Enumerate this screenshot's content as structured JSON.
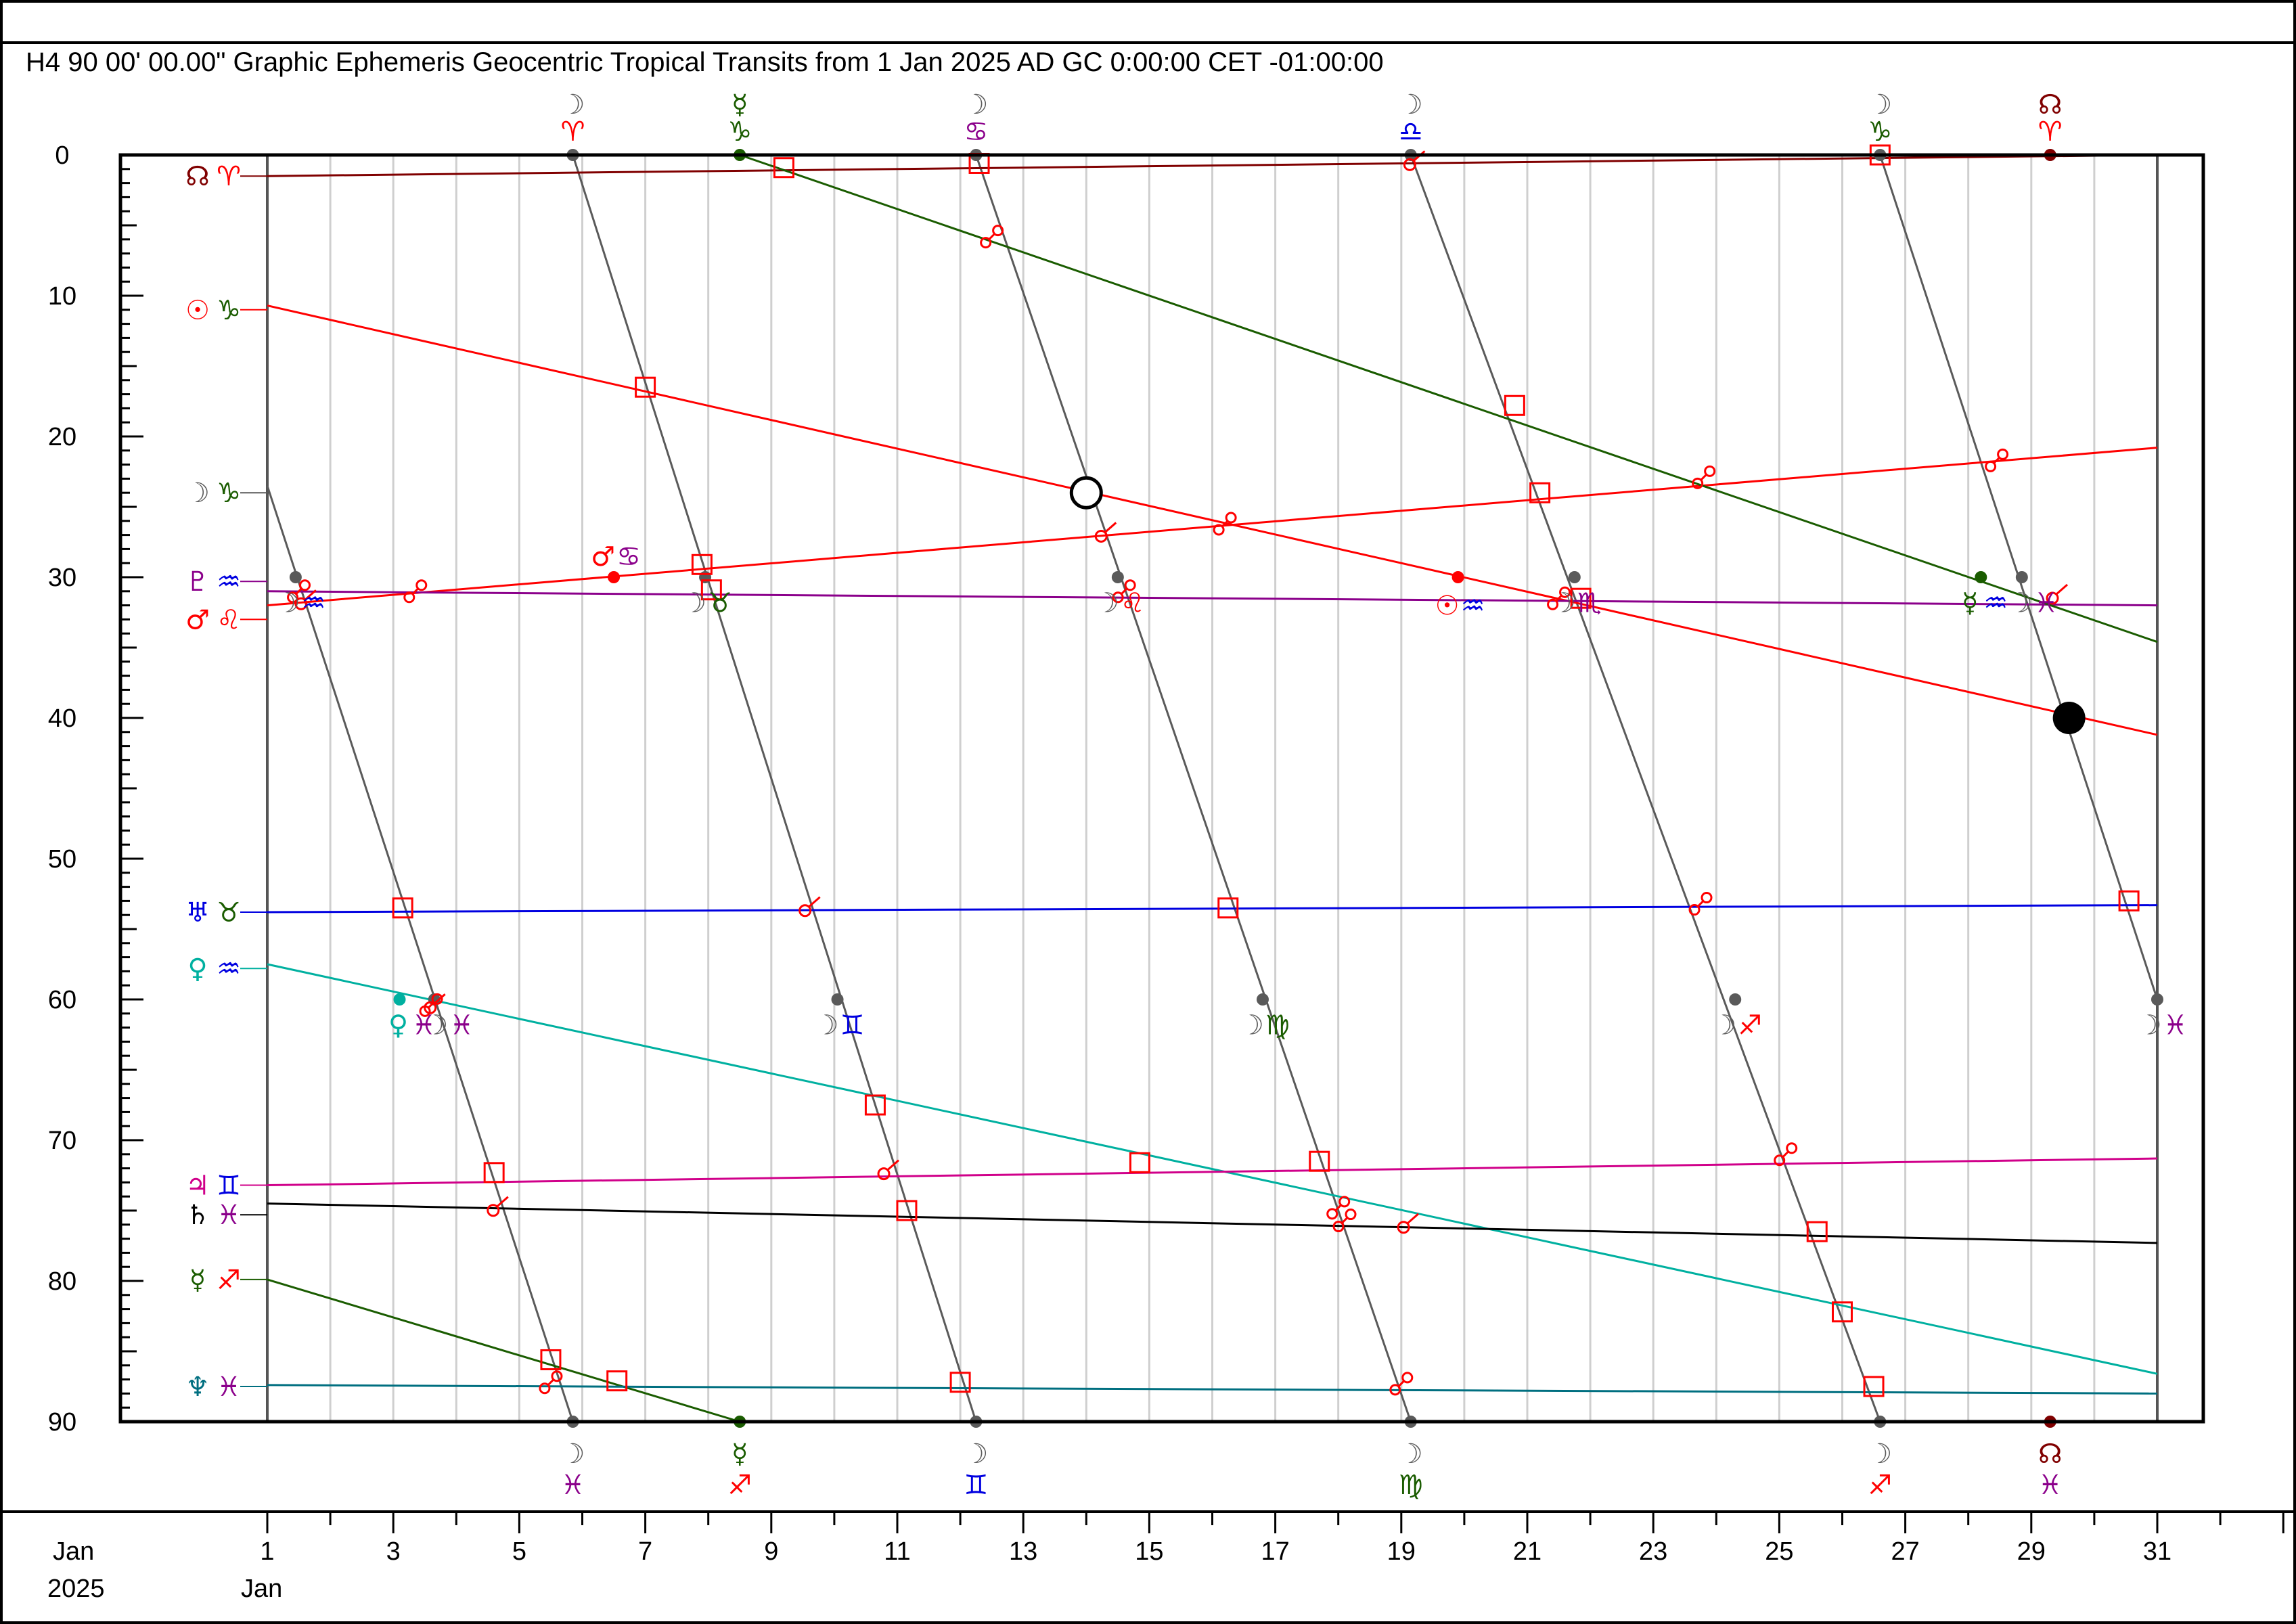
{
  "header": {
    "title": "H4   90 00' 00.00\" Graphic Ephemeris Geocentric Tropical Transits from 1 Jan 2025 AD GC 0:00:00 CET -01:00:00"
  },
  "footer": {
    "month_label": "Jan",
    "year_label": "2025",
    "start_month_label": "Jan"
  },
  "colors": {
    "moon": "#5a5a5a",
    "sun": "#ff0000",
    "mars": "#ff0000",
    "mercury": "#1a5c00",
    "venus": "#00b0a0",
    "jupiter": "#d0008a",
    "saturn": "#000000",
    "uranus": "#0000e0",
    "neptune": "#006f80",
    "pluto": "#8b008b",
    "node": "#800000",
    "aspect": "#ff0000"
  },
  "chart_data": {
    "type": "line",
    "title": "Graphic Ephemeris Geocentric Tropical Transits from 1 Jan 2025 AD GC 0:00:00 CET -01:00:00",
    "harmonic": "H4",
    "modulus_label": "90 00' 00.00\"",
    "x_unit": "day of January 2025",
    "x_range": [
      1,
      31
    ],
    "y_unit": "degrees within 90° modulus",
    "ylim": [
      0,
      90
    ],
    "y_ticks": [
      0,
      10,
      20,
      30,
      40,
      50,
      60,
      70,
      80,
      90
    ],
    "x_tick_labels": [
      1,
      3,
      5,
      7,
      9,
      11,
      13,
      15,
      17,
      19,
      21,
      23,
      25,
      27,
      29,
      31
    ],
    "series": [
      {
        "name": "Node",
        "glyph": "☊",
        "sign": "♈",
        "color_key": "node",
        "start": [
          1,
          1.5
        ],
        "end": [
          31,
          0.0
        ]
      },
      {
        "name": "Sun",
        "glyph": "☉",
        "sign": "♑",
        "color_key": "sun",
        "start": [
          1,
          10.7
        ],
        "end": [
          31,
          41.2
        ]
      },
      {
        "name": "Mars",
        "glyph": "♂",
        "sign": "♌",
        "color_key": "mars",
        "start": [
          1,
          32.0
        ],
        "end": [
          31,
          20.8
        ]
      },
      {
        "name": "Pluto",
        "glyph": "♇",
        "sign": "♒",
        "color_key": "pluto",
        "start": [
          1,
          31.0
        ],
        "end": [
          31,
          32.0
        ]
      },
      {
        "name": "Mercury",
        "glyph": "☿",
        "sign": "♐",
        "color_key": "mercury",
        "start": [
          1,
          79.9
        ],
        "end": [
          8.5,
          90.0
        ]
      },
      {
        "name": "Mercury",
        "glyph": "☿",
        "sign": "♑",
        "color_key": "mercury",
        "start": [
          8.5,
          0.0
        ],
        "end": [
          31,
          34.6
        ]
      },
      {
        "name": "Uranus",
        "glyph": "♅",
        "sign": "♉",
        "color_key": "uranus",
        "start": [
          1,
          53.8
        ],
        "end": [
          31,
          53.3
        ]
      },
      {
        "name": "Venus",
        "glyph": "♀",
        "sign": "♒",
        "color_key": "venus",
        "start": [
          1,
          57.5
        ],
        "end": [
          31,
          86.6
        ]
      },
      {
        "name": "Jupiter",
        "glyph": "♃",
        "sign": "♊",
        "color_key": "jupiter",
        "start": [
          1,
          73.2
        ],
        "end": [
          31,
          71.3
        ]
      },
      {
        "name": "Saturn",
        "glyph": "♄",
        "sign": "♓",
        "color_key": "saturn",
        "start": [
          1,
          74.5
        ],
        "end": [
          31,
          77.3
        ]
      },
      {
        "name": "Neptune",
        "glyph": "♆",
        "sign": "♓",
        "color_key": "neptune",
        "start": [
          1,
          87.4
        ],
        "end": [
          31,
          88.0
        ]
      }
    ],
    "moon_segments": [
      {
        "start": [
          1,
          23.5
        ],
        "end": [
          5.85,
          90
        ]
      },
      {
        "start": [
          5.85,
          0
        ],
        "end": [
          12.25,
          90
        ]
      },
      {
        "start": [
          12.25,
          0
        ],
        "end": [
          19.15,
          90
        ]
      },
      {
        "start": [
          19.15,
          0
        ],
        "end": [
          26.6,
          90
        ]
      },
      {
        "start": [
          26.6,
          0
        ],
        "end": [
          31,
          60
        ]
      }
    ],
    "row_labels": [
      {
        "y": 1.5,
        "glyph": "☊",
        "sign": "♈",
        "glyph_color": "node",
        "sign_color": "sun"
      },
      {
        "y": 11,
        "glyph": "☉",
        "sign": "♑",
        "glyph_color": "sun",
        "sign_color": "mercury"
      },
      {
        "y": 24,
        "glyph": "☽",
        "sign": "♑",
        "glyph_color": "moon",
        "sign_color": "mercury"
      },
      {
        "y": 30.3,
        "glyph": "♇",
        "sign": "♒",
        "glyph_color": "pluto",
        "sign_color": "uranus"
      },
      {
        "y": 33,
        "glyph": "♂",
        "sign": "♌",
        "glyph_color": "mars",
        "sign_color": "mars"
      },
      {
        "y": 53.8,
        "glyph": "♅",
        "sign": "♉",
        "glyph_color": "uranus",
        "sign_color": "mercury"
      },
      {
        "y": 57.8,
        "glyph": "♀",
        "sign": "♒",
        "glyph_color": "venus",
        "sign_color": "uranus"
      },
      {
        "y": 73.2,
        "glyph": "♃",
        "sign": "♊",
        "glyph_color": "jupiter",
        "sign_color": "uranus"
      },
      {
        "y": 75.3,
        "glyph": "♄",
        "sign": "♓",
        "glyph_color": "saturn",
        "sign_color": "pluto"
      },
      {
        "y": 79.9,
        "glyph": "☿",
        "sign": "♐",
        "glyph_color": "mercury",
        "sign_color": "mars"
      },
      {
        "y": 87.5,
        "glyph": "♆",
        "sign": "♓",
        "glyph_color": "neptune",
        "sign_color": "pluto"
      }
    ],
    "top_ingress_labels": [
      {
        "x": 5.85,
        "glyph": "☽",
        "sign": "♈",
        "glyph_color": "moon",
        "sign_color": "sun"
      },
      {
        "x": 8.5,
        "glyph": "☿",
        "sign": "♑",
        "glyph_color": "mercury",
        "sign_color": "mercury"
      },
      {
        "x": 12.25,
        "glyph": "☽",
        "sign": "♋",
        "glyph_color": "moon",
        "sign_color": "pluto"
      },
      {
        "x": 19.15,
        "glyph": "☽",
        "sign": "♎",
        "glyph_color": "moon",
        "sign_color": "uranus"
      },
      {
        "x": 26.6,
        "glyph": "☽",
        "sign": "♑",
        "glyph_color": "moon",
        "sign_color": "mercury"
      },
      {
        "x": 29.3,
        "glyph": "☊",
        "sign": "♈",
        "glyph_color": "node",
        "sign_color": "sun"
      }
    ],
    "bottom_ingress_labels": [
      {
        "x": 5.85,
        "glyph": "☽",
        "sign": "♓",
        "glyph_color": "moon",
        "sign_color": "pluto"
      },
      {
        "x": 8.5,
        "glyph": "☿",
        "sign": "♐",
        "glyph_color": "mercury",
        "sign_color": "mars"
      },
      {
        "x": 12.25,
        "glyph": "☽",
        "sign": "♊",
        "glyph_color": "moon",
        "sign_color": "uranus"
      },
      {
        "x": 19.15,
        "glyph": "☽",
        "sign": "♍",
        "glyph_color": "moon",
        "sign_color": "mercury"
      },
      {
        "x": 26.6,
        "glyph": "☽",
        "sign": "♐",
        "glyph_color": "moon",
        "sign_color": "mars"
      },
      {
        "x": 29.3,
        "glyph": "☊",
        "sign": "♓",
        "glyph_color": "node",
        "sign_color": "pluto"
      }
    ],
    "midchart_ingress_labels": [
      {
        "x": 1.5,
        "y": 31.8,
        "glyph": "☽",
        "sign": "♒",
        "glyph_color": "moon",
        "sign_color": "uranus"
      },
      {
        "x": 7.95,
        "y": 31.8,
        "glyph": "☽",
        "sign": "♉",
        "glyph_color": "moon",
        "sign_color": "mercury"
      },
      {
        "x": 14.5,
        "y": 31.8,
        "glyph": "☽",
        "sign": "♌",
        "glyph_color": "moon",
        "sign_color": "mars"
      },
      {
        "x": 19.9,
        "y": 32.0,
        "glyph": "☉",
        "sign": "♒",
        "glyph_color": "sun",
        "sign_color": "uranus"
      },
      {
        "x": 21.75,
        "y": 31.8,
        "glyph": "☽",
        "sign": "♏",
        "glyph_color": "moon",
        "sign_color": "pluto"
      },
      {
        "x": 28.2,
        "y": 31.8,
        "glyph": "☿",
        "sign": "♒",
        "glyph_color": "mercury",
        "sign_color": "uranus"
      },
      {
        "x": 29.0,
        "y": 31.8,
        "glyph": "☽",
        "sign": "♓",
        "glyph_color": "moon",
        "sign_color": "pluto"
      },
      {
        "x": 6.5,
        "y": 28.5,
        "glyph": "♂",
        "sign": "♋",
        "glyph_color": "mars",
        "sign_color": "pluto"
      },
      {
        "x": 3.25,
        "y": 61.8,
        "glyph": "♀",
        "sign": "♓",
        "glyph_color": "venus",
        "sign_color": "pluto"
      },
      {
        "x": 3.85,
        "y": 61.8,
        "glyph": "☽",
        "sign": "♓",
        "glyph_color": "moon",
        "sign_color": "pluto"
      },
      {
        "x": 10.05,
        "y": 61.8,
        "glyph": "☽",
        "sign": "♊",
        "glyph_color": "moon",
        "sign_color": "uranus"
      },
      {
        "x": 16.8,
        "y": 61.8,
        "glyph": "☽",
        "sign": "♍",
        "glyph_color": "moon",
        "sign_color": "mercury"
      },
      {
        "x": 24.3,
        "y": 61.8,
        "glyph": "☽",
        "sign": "♐",
        "glyph_color": "moon",
        "sign_color": "mars"
      },
      {
        "x": 31.05,
        "y": 61.8,
        "glyph": "☽",
        "sign": "♓",
        "glyph_color": "moon",
        "sign_color": "pluto"
      }
    ],
    "ingress_dots": [
      {
        "x": 1.45,
        "y": 30,
        "color_key": "moon"
      },
      {
        "x": 7.95,
        "y": 30,
        "color_key": "moon"
      },
      {
        "x": 14.5,
        "y": 30,
        "color_key": "moon"
      },
      {
        "x": 21.75,
        "y": 30,
        "color_key": "moon"
      },
      {
        "x": 28.85,
        "y": 30,
        "color_key": "moon"
      },
      {
        "x": 3.65,
        "y": 60,
        "color_key": "moon"
      },
      {
        "x": 10.05,
        "y": 60,
        "color_key": "moon"
      },
      {
        "x": 16.8,
        "y": 60,
        "color_key": "moon"
      },
      {
        "x": 24.3,
        "y": 60,
        "color_key": "moon"
      },
      {
        "x": 31,
        "y": 60,
        "color_key": "moon"
      },
      {
        "x": 5.85,
        "y": 0,
        "color_key": "moon"
      },
      {
        "x": 12.25,
        "y": 0,
        "color_key": "moon"
      },
      {
        "x": 19.15,
        "y": 0,
        "color_key": "moon"
      },
      {
        "x": 26.6,
        "y": 0,
        "color_key": "moon"
      },
      {
        "x": 5.85,
        "y": 90,
        "color_key": "moon"
      },
      {
        "x": 12.25,
        "y": 90,
        "color_key": "moon"
      },
      {
        "x": 19.15,
        "y": 90,
        "color_key": "moon"
      },
      {
        "x": 26.6,
        "y": 90,
        "color_key": "moon"
      },
      {
        "x": 8.5,
        "y": 0,
        "color_key": "mercury"
      },
      {
        "x": 8.5,
        "y": 90,
        "color_key": "mercury"
      },
      {
        "x": 28.2,
        "y": 30,
        "color_key": "mercury"
      },
      {
        "x": 29.3,
        "y": 0,
        "color_key": "node"
      },
      {
        "x": 29.3,
        "y": 90,
        "color_key": "node"
      },
      {
        "x": 6.5,
        "y": 30,
        "color_key": "mars"
      },
      {
        "x": 19.9,
        "y": 30,
        "color_key": "sun"
      },
      {
        "x": 3.1,
        "y": 60,
        "color_key": "venus"
      }
    ],
    "square_markers": [
      {
        "x": 9.2,
        "y": 0.9
      },
      {
        "x": 12.3,
        "y": 0.6
      },
      {
        "x": 26.6,
        "y": 0.0
      },
      {
        "x": 7.0,
        "y": 16.5
      },
      {
        "x": 20.8,
        "y": 17.8
      },
      {
        "x": 21.2,
        "y": 24.0
      },
      {
        "x": 7.9,
        "y": 29.1
      },
      {
        "x": 8.05,
        "y": 30.9
      },
      {
        "x": 21.85,
        "y": 31.5
      },
      {
        "x": 3.15,
        "y": 53.5
      },
      {
        "x": 16.25,
        "y": 53.5
      },
      {
        "x": 30.55,
        "y": 53.0
      },
      {
        "x": 10.65,
        "y": 67.5
      },
      {
        "x": 4.6,
        "y": 72.3
      },
      {
        "x": 14.85,
        "y": 71.6
      },
      {
        "x": 17.7,
        "y": 71.5
      },
      {
        "x": 11.15,
        "y": 75.0
      },
      {
        "x": 25.6,
        "y": 76.5
      },
      {
        "x": 26.0,
        "y": 82.2
      },
      {
        "x": 5.5,
        "y": 85.6
      },
      {
        "x": 6.55,
        "y": 87.1
      },
      {
        "x": 12.0,
        "y": 87.2
      },
      {
        "x": 26.5,
        "y": 87.5
      }
    ],
    "opposition_markers": [
      {
        "x": 12.5,
        "y": 5.8
      },
      {
        "x": 1.5,
        "y": 31.0
      },
      {
        "x": 3.35,
        "y": 31.0
      },
      {
        "x": 14.6,
        "y": 31.0
      },
      {
        "x": 16.2,
        "y": 26.2
      },
      {
        "x": 23.8,
        "y": 22.9
      },
      {
        "x": 28.45,
        "y": 21.7
      },
      {
        "x": 21.5,
        "y": 31.5
      },
      {
        "x": 23.75,
        "y": 53.2
      },
      {
        "x": 3.6,
        "y": 60.4
      },
      {
        "x": 25.1,
        "y": 71.0
      },
      {
        "x": 18.0,
        "y": 74.8
      },
      {
        "x": 18.1,
        "y": 75.7
      },
      {
        "x": 5.5,
        "y": 87.2
      },
      {
        "x": 19.0,
        "y": 87.3
      }
    ],
    "conjunction_markers": [
      {
        "x": 19.2,
        "y": 0.4
      },
      {
        "x": 14.3,
        "y": 26.8
      },
      {
        "x": 9.6,
        "y": 53.4
      },
      {
        "x": 3.65,
        "y": 60.3
      },
      {
        "x": 10.85,
        "y": 72.1
      },
      {
        "x": 4.65,
        "y": 74.7
      },
      {
        "x": 19.1,
        "y": 75.9
      },
      {
        "x": 1.6,
        "y": 31.6
      },
      {
        "x": 29.4,
        "y": 31.2
      }
    ],
    "lunations": [
      {
        "type": "full-moon",
        "x": 14.0,
        "y": 24.0
      },
      {
        "type": "new-moon",
        "x": 29.6,
        "y": 40.0
      }
    ],
    "grid": true
  }
}
